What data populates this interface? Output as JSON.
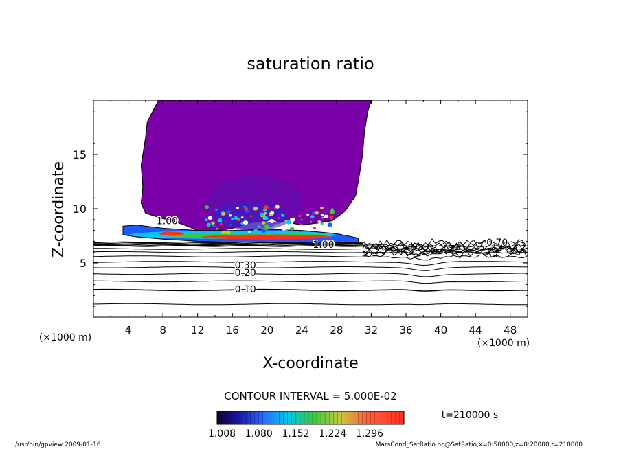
{
  "chart_data": {
    "type": "contour",
    "title": "saturation ratio",
    "xlabel": "X-coordinate",
    "ylabel": "Z-coordinate",
    "x_unit_left": "(×1000 m)",
    "x_unit_right": "(×1000 m)",
    "xlim": [
      0,
      50
    ],
    "ylim": [
      0,
      20
    ],
    "x_ticks": [
      "4",
      "8",
      "12",
      "16",
      "20",
      "24",
      "28",
      "32",
      "36",
      "40",
      "44",
      "48"
    ],
    "y_ticks": [
      "5",
      "10",
      "15"
    ],
    "contour_interval_label": "CONTOUR INTERVAL = 5.000E-02",
    "time_label": "t=210000 s",
    "colorbar_labels": [
      "1.008",
      "1.080",
      "1.152",
      "1.224",
      "1.296"
    ],
    "colorbar_range": [
      1.008,
      1.296
    ],
    "contour_labels": [
      {
        "text": "1.00",
        "x": 8.5,
        "z": 8.9
      },
      {
        "text": "1.00",
        "x": 26.5,
        "z": 6.7
      },
      {
        "text": "0.30",
        "x": 17.5,
        "z": 4.8
      },
      {
        "text": "0.20",
        "x": 17.5,
        "z": 4.1
      },
      {
        "text": "0.10",
        "x": 17.5,
        "z": 2.6
      },
      {
        "text": "0.70",
        "x": 46.5,
        "z": 6.9
      }
    ],
    "stable_levels_z": [
      1.2,
      2.5,
      3.3,
      4.0,
      4.6,
      5.1,
      5.6,
      6.0,
      6.3,
      6.6
    ],
    "footer_left": "/usr/bin/gpview  2009-01-16",
    "footer_right": "MarsCond_SatRatio.nc@SatRatio,x=0:50000,z=0:20000,t=210000",
    "colors": {
      "cloud": "#7a00a8",
      "layer_outer": "#1a5cff",
      "layer_mid": "#00c8ff",
      "layer_green": "#3cc83c",
      "layer_red": "#ff3020"
    }
  }
}
